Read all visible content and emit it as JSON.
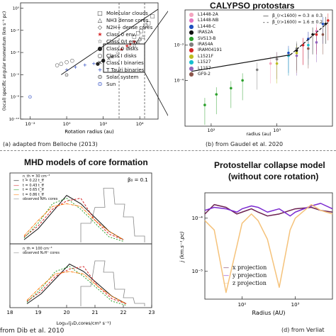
{
  "panels": {
    "a": {
      "caption": "(a) adapted from Belloche (2013)",
      "xlabel": "Rotation radius (au)",
      "ylabel": "(local) specific angular momentum (km s⁻¹ pc)",
      "xticks": [
        "10⁻²",
        "10⁰",
        "10²",
        "10⁴"
      ],
      "yticks": [
        "10⁰",
        "10⁻²",
        "10⁻⁴",
        "10⁻⁶",
        "10⁻⁸",
        "10⁻¹⁰"
      ],
      "legend": [
        {
          "sym": "□",
          "color": "#222222",
          "label": "Molecular clouds"
        },
        {
          "sym": "△",
          "color": "#222222",
          "label": "NH3 dense cores"
        },
        {
          "sym": "◇",
          "color": "#222222",
          "label": "N2H+ dense cores"
        },
        {
          "sym": "★",
          "color": "#d62728",
          "label": "Class 0 env."
        },
        {
          "sym": "☆",
          "color": "#222222",
          "label": "Class 0/I env."
        },
        {
          "sym": "●",
          "color": "#222222",
          "label": "Class 0 disks"
        },
        {
          "sym": "○",
          "color": "#222222",
          "label": "Class I disks"
        },
        {
          "sym": "✕",
          "color": "#222222",
          "label": "Class I binaries"
        },
        {
          "sym": "+",
          "color": "#1f3fbf",
          "label": "T Tauri binaries"
        },
        {
          "sym": "⊙",
          "color": "#222222",
          "label": "Solar system"
        },
        {
          "sym": "⊙",
          "color": "#1f3fbf",
          "label": "Sun"
        }
      ]
    },
    "b": {
      "title": "CALYPSO protostars",
      "caption": "(b) from Gaudel et al. 2020",
      "xlabel": "radius (au)",
      "xticks": [
        "10²",
        "10³"
      ],
      "yticks": [
        "10⁻³",
        "10⁻⁴"
      ],
      "fit_legend": [
        "β_(r<1600) = 0.3 ± 0.3",
        "β_(r>1600) = 1.6 ± 0.2"
      ],
      "legend": [
        {
          "color": "#f4a6c0",
          "label": "L1448-2A"
        },
        {
          "color": "#e377c2",
          "label": "L1448-NB"
        },
        {
          "color": "#1f4fbf",
          "label": "L1448-C"
        },
        {
          "color": "#111111",
          "label": "IRAS2A"
        },
        {
          "color": "#2ca02c",
          "label": "SVS13-B"
        },
        {
          "color": "#7f7f7f",
          "label": "IRAS4A"
        },
        {
          "color": "#d62728",
          "label": "IRAM04191"
        },
        {
          "color": "#bcbd22",
          "label": "L1521F"
        },
        {
          "color": "#17becf",
          "label": "L1527"
        },
        {
          "color": "#9467bd",
          "label": "L1157"
        },
        {
          "color": "#8c564b",
          "label": "GF9-2"
        }
      ]
    },
    "c": {
      "title": "MHD models of core formation",
      "caption": "from Dib et al. 2010",
      "xlabel": "Log₁₀(j₃D,cores/cm² s⁻¹)",
      "xticks": [
        "18",
        "19",
        "20",
        "21",
        "22",
        "23"
      ],
      "beta_label": "β₀ = 0.1",
      "top_legend": [
        "n_th = 30 cm⁻³",
        "t = 0.22 t_ff",
        "t = 0.43 t_ff",
        "t = 0.65 t_ff",
        "t = 0.86 t_ff",
        "observed NH₃ cores"
      ],
      "bottom_legend": [
        "n_th = 100 cm⁻³",
        "observed N₂H⁺ cores"
      ],
      "top_colors": [
        "#111111",
        "#d62728",
        "#2ca02c",
        "#ff7f0e"
      ],
      "bottom_colors": [
        "#111111",
        "#d62728",
        "#2ca02c",
        "#ff7f0e"
      ]
    },
    "d": {
      "title_line1": "Protostellar collapse model",
      "title_line2": "(without core rotation)",
      "caption": "(d) from Verliat",
      "xlabel": "Radius (AU)",
      "ylabel": "j (km.s⁻¹.pc)",
      "xticks": [
        "10²",
        "10³"
      ],
      "yticks": [
        "10⁻⁴",
        "10⁻⁵"
      ],
      "legend": [
        "x projection",
        "y projection",
        "z projection"
      ],
      "colors": [
        "#6b1f4f",
        "#7b2ad0",
        "#f5c27a"
      ]
    }
  },
  "chart_data": [
    {
      "type": "scatter",
      "panel": "a",
      "xlabel": "Rotation radius (au)",
      "ylabel": "(local) specific angular momentum (km s⁻¹ pc)",
      "xscale": "log",
      "yscale": "log",
      "xlim": [
        0.003,
        100000
      ],
      "ylim": [
        1e-10,
        3
      ],
      "series": [
        {
          "name": "Molecular clouds",
          "x": [
            5000,
            8000,
            12000,
            20000,
            30000,
            50000
          ],
          "y": [
            0.003,
            0.006,
            0.01,
            0.03,
            0.05,
            0.2
          ]
        },
        {
          "name": "NH3 dense cores",
          "x": [
            5000,
            8000,
            10000,
            15000
          ],
          "y": [
            0.0005,
            0.001,
            0.002,
            0.003
          ]
        },
        {
          "name": "N2H+ dense cores",
          "x": [
            3000,
            6000,
            10000
          ],
          "y": [
            0.0003,
            0.0008,
            0.0015
          ]
        },
        {
          "name": "Class 0 env.",
          "x": [
            1000,
            2000,
            3000,
            5000
          ],
          "y": [
            0.0002,
            0.0004,
            0.0006,
            0.001
          ]
        },
        {
          "name": "Class 0/I env.",
          "x": [
            300,
            600,
            1000
          ],
          "y": [
            5e-05,
            0.0001,
            0.0002
          ]
        },
        {
          "name": "Class 0 disks",
          "x": [
            50,
            100
          ],
          "y": [
            1e-05,
            2e-05
          ]
        },
        {
          "name": "Class I disks",
          "x": [
            0.3,
            0.5,
            1,
            2
          ],
          "y": [
            8e-06,
            1e-05,
            1.5e-05,
            2e-05
          ]
        },
        {
          "name": "Class I binaries",
          "x": [
            100,
            200,
            300
          ],
          "y": [
            2e-05,
            3e-05,
            4e-05
          ]
        },
        {
          "name": "T Tauri binaries",
          "x": [
            1,
            3,
            10,
            30
          ],
          "y": [
            3e-06,
            5e-06,
            8e-06,
            1e-05
          ]
        },
        {
          "name": "Solar system",
          "x": [
            1
          ],
          "y": [
            1e-06
          ]
        },
        {
          "name": "Sun",
          "x": [
            0.01
          ],
          "y": [
            1e-08
          ]
        }
      ]
    },
    {
      "type": "scatter",
      "panel": "b",
      "title": "CALYPSO protostars",
      "xlabel": "radius (au)",
      "xscale": "log",
      "yscale": "log",
      "xlim": [
        40,
        7000
      ],
      "ylim": [
        5e-06,
        0.01
      ],
      "fits": [
        {
          "name": "β_(r<1600) = 0.3 ± 0.3",
          "x": [
            50,
            1600
          ],
          "y": [
            0.00018,
            0.00053
          ]
        },
        {
          "name": "β_(r>1600) = 1.6 ± 0.2",
          "x": [
            1600,
            6000
          ],
          "y": [
            0.00053,
            0.0044
          ]
        }
      ],
      "series": [
        {
          "name": "L1448-2A",
          "x": [
            800,
            1500,
            3000
          ],
          "y": [
            0.0003,
            0.0005,
            0.0015
          ]
        },
        {
          "name": "L1448-NB",
          "x": [
            1000,
            2500,
            4000
          ],
          "y": [
            0.0004,
            0.001,
            0.0025
          ]
        },
        {
          "name": "L1448-C",
          "x": [
            1500,
            3000,
            5000
          ],
          "y": [
            0.0006,
            0.0015,
            0.004
          ]
        },
        {
          "name": "IRAS2A",
          "x": [
            2000,
            3500,
            5500
          ],
          "y": [
            0.0007,
            0.002,
            0.004
          ]
        },
        {
          "name": "SVS13-B",
          "x": [
            80,
            120,
            200,
            300
          ],
          "y": [
            2e-05,
            4e-05,
            6e-05,
            0.0001
          ]
        },
        {
          "name": "IRAS4A",
          "x": [
            500,
            1000,
            2000
          ],
          "y": [
            0.0002,
            0.0004,
            0.0008
          ]
        },
        {
          "name": "IRAM04191",
          "x": [
            2500,
            4000,
            6000
          ],
          "y": [
            0.001,
            0.002,
            0.005
          ]
        },
        {
          "name": "L1521F",
          "x": [
            1000,
            2000
          ],
          "y": [
            0.0003,
            0.0006
          ]
        },
        {
          "name": "L1527",
          "x": [
            1500,
            3000
          ],
          "y": [
            0.0005,
            0.001
          ]
        },
        {
          "name": "L1157",
          "x": [
            2000,
            4000
          ],
          "y": [
            0.0005,
            0.0012
          ]
        },
        {
          "name": "GF9-2",
          "x": [
            3000,
            5000
          ],
          "y": [
            0.0008,
            0.002
          ]
        }
      ]
    },
    {
      "type": "line",
      "panel": "c",
      "title": "MHD models of core formation",
      "xlabel": "Log₁₀(j₃D,cores/cm² s⁻¹)",
      "xlim": [
        18,
        23
      ],
      "ylim": [
        0,
        1
      ],
      "x": [
        18.5,
        19.0,
        19.5,
        20.0,
        20.5,
        21.0,
        21.5,
        22.0
      ],
      "series": [
        {
          "name": "t = 0.22 t_ff",
          "values": [
            0.05,
            0.25,
            0.55,
            0.85,
            0.7,
            0.45,
            0.2,
            0.05
          ]
        },
        {
          "name": "t = 0.43 t_ff",
          "values": [
            0.1,
            0.3,
            0.6,
            0.75,
            0.8,
            0.4,
            0.15,
            0.05
          ]
        },
        {
          "name": "t = 0.65 t_ff",
          "values": [
            0.08,
            0.35,
            0.7,
            0.8,
            0.6,
            0.35,
            0.1,
            0.02
          ]
        },
        {
          "name": "t = 0.86 t_ff",
          "values": [
            0.12,
            0.4,
            0.65,
            0.7,
            0.65,
            0.4,
            0.2,
            0.05
          ]
        }
      ]
    },
    {
      "type": "line",
      "panel": "d",
      "xlabel": "Radius (AU)",
      "ylabel": "j (km.s⁻¹.pc)",
      "xscale": "log",
      "yscale": "log",
      "xlim": [
        20,
        5000
      ],
      "ylim": [
        3e-06,
        0.0003
      ],
      "x": [
        20,
        30,
        50,
        80,
        100,
        150,
        200,
        300,
        500,
        800,
        1000,
        2000,
        3000,
        5000
      ],
      "series": [
        {
          "name": "x projection",
          "values": [
            0.00012,
            0.00018,
            0.00016,
            0.00012,
            0.00013,
            0.00015,
            0.00013,
            0.00011,
            0.00012,
            0.00014,
            0.00015,
            0.00016,
            0.00014,
            0.00013
          ]
        },
        {
          "name": "y projection",
          "values": [
            0.00014,
            0.00016,
            0.00015,
            0.00013,
            0.00015,
            0.00017,
            0.00016,
            0.00013,
            0.00015,
            0.00011,
            0.00013,
            0.00017,
            0.00019,
            0.00015
          ]
        },
        {
          "name": "z projection",
          "values": [
            9e-05,
            6e-05,
            4e-06,
            3e-05,
            8e-05,
            0.00012,
            9e-05,
            4e-05,
            5e-06,
            6e-05,
            0.0001,
            0.00018,
            0.00014,
            0.00012
          ]
        }
      ]
    }
  ]
}
